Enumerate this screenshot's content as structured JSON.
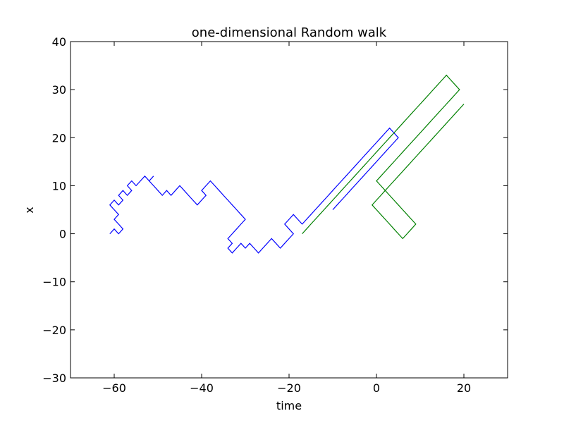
{
  "chart_data": {
    "type": "line",
    "title": "one-dimensional Random walk",
    "xlabel": "time",
    "ylabel": "x",
    "xlim": [
      -70,
      30
    ],
    "ylim": [
      -30,
      40
    ],
    "xticks": [
      -60,
      -40,
      -20,
      0,
      20
    ],
    "yticks": [
      -30,
      -20,
      -10,
      0,
      10,
      20,
      30,
      40
    ],
    "xtick_labels": [
      "−60",
      "−40",
      "−20",
      "0",
      "20"
    ],
    "ytick_labels": [
      "−30",
      "−20",
      "−10",
      "0",
      "10",
      "20",
      "30",
      "40"
    ],
    "grid": false,
    "legend": "none",
    "series": [
      {
        "color": "#0000ff",
        "points": [
          [
            -61,
            0
          ],
          [
            -60,
            1
          ],
          [
            -59,
            0
          ],
          [
            -58,
            1
          ],
          [
            -59,
            2
          ],
          [
            -60,
            3
          ],
          [
            -59,
            4
          ],
          [
            -60,
            5
          ],
          [
            -61,
            6
          ],
          [
            -60,
            7
          ],
          [
            -59,
            6
          ],
          [
            -58,
            7
          ],
          [
            -59,
            8
          ],
          [
            -58,
            9
          ],
          [
            -57,
            8
          ],
          [
            -56,
            9
          ],
          [
            -57,
            10
          ],
          [
            -56,
            11
          ],
          [
            -55,
            10
          ],
          [
            -54,
            11
          ],
          [
            -53,
            12
          ],
          [
            -52,
            11
          ],
          [
            -51,
            12
          ],
          [
            -52,
            11
          ],
          [
            -51,
            10
          ],
          [
            -50,
            9
          ],
          [
            -49,
            8
          ],
          [
            -48,
            9
          ],
          [
            -47,
            8
          ],
          [
            -46,
            9
          ],
          [
            -45,
            10
          ],
          [
            -44,
            9
          ],
          [
            -43,
            8
          ],
          [
            -42,
            7
          ],
          [
            -41,
            6
          ],
          [
            -40,
            7
          ],
          [
            -39,
            8
          ],
          [
            -40,
            9
          ],
          [
            -39,
            10
          ],
          [
            -38,
            11
          ],
          [
            -37,
            10
          ],
          [
            -36,
            9
          ],
          [
            -35,
            8
          ],
          [
            -34,
            7
          ],
          [
            -33,
            6
          ],
          [
            -32,
            5
          ],
          [
            -31,
            4
          ],
          [
            -30,
            3
          ],
          [
            -31,
            2
          ],
          [
            -32,
            1
          ],
          [
            -33,
            0
          ],
          [
            -34,
            -1
          ],
          [
            -33,
            -2
          ],
          [
            -34,
            -3
          ],
          [
            -33,
            -4
          ],
          [
            -32,
            -3
          ],
          [
            -31,
            -2
          ],
          [
            -30,
            -3
          ],
          [
            -29,
            -2
          ],
          [
            -28,
            -3
          ],
          [
            -27,
            -4
          ],
          [
            -26,
            -3
          ],
          [
            -25,
            -2
          ],
          [
            -24,
            -1
          ],
          [
            -23,
            -2
          ],
          [
            -22,
            -3
          ],
          [
            -21,
            -2
          ],
          [
            -20,
            -1
          ],
          [
            -19,
            0
          ],
          [
            -20,
            1
          ],
          [
            -21,
            2
          ],
          [
            -20,
            3
          ],
          [
            -19,
            4
          ],
          [
            -18,
            3
          ],
          [
            -17,
            2
          ],
          [
            -16,
            3
          ],
          [
            -15,
            4
          ],
          [
            -14,
            5
          ],
          [
            -13,
            6
          ],
          [
            -12,
            7
          ],
          [
            -11,
            8
          ],
          [
            -10,
            9
          ],
          [
            -9,
            10
          ],
          [
            -8,
            11
          ],
          [
            -7,
            12
          ],
          [
            -6,
            13
          ],
          [
            -5,
            14
          ],
          [
            -4,
            15
          ],
          [
            -3,
            16
          ],
          [
            -2,
            17
          ],
          [
            -1,
            18
          ],
          [
            0,
            19
          ],
          [
            1,
            20
          ],
          [
            2,
            21
          ],
          [
            3,
            22
          ],
          [
            4,
            21
          ],
          [
            5,
            20
          ],
          [
            4,
            19
          ],
          [
            3,
            18
          ],
          [
            2,
            17
          ],
          [
            1,
            16
          ],
          [
            0,
            15
          ],
          [
            -1,
            14
          ],
          [
            -2,
            13
          ],
          [
            -3,
            12
          ],
          [
            -4,
            11
          ],
          [
            -5,
            10
          ],
          [
            -6,
            9
          ],
          [
            -7,
            8
          ],
          [
            -8,
            7
          ],
          [
            -9,
            6
          ],
          [
            -10,
            5
          ]
        ]
      },
      {
        "color": "#008000",
        "points": [
          [
            -17,
            0
          ],
          [
            -16,
            1
          ],
          [
            -15,
            2
          ],
          [
            -14,
            3
          ],
          [
            -13,
            4
          ],
          [
            -12,
            5
          ],
          [
            -11,
            6
          ],
          [
            -10,
            7
          ],
          [
            -9,
            8
          ],
          [
            -8,
            9
          ],
          [
            -7,
            10
          ],
          [
            -6,
            11
          ],
          [
            -5,
            12
          ],
          [
            -4,
            13
          ],
          [
            -3,
            14
          ],
          [
            -2,
            15
          ],
          [
            -1,
            16
          ],
          [
            0,
            17
          ],
          [
            1,
            18
          ],
          [
            2,
            19
          ],
          [
            3,
            20
          ],
          [
            4,
            21
          ],
          [
            5,
            22
          ],
          [
            6,
            23
          ],
          [
            7,
            24
          ],
          [
            8,
            25
          ],
          [
            9,
            26
          ],
          [
            10,
            27
          ],
          [
            11,
            28
          ],
          [
            12,
            29
          ],
          [
            13,
            30
          ],
          [
            14,
            31
          ],
          [
            15,
            32
          ],
          [
            16,
            33
          ],
          [
            17,
            32
          ],
          [
            18,
            31
          ],
          [
            19,
            30
          ],
          [
            18,
            29
          ],
          [
            17,
            28
          ],
          [
            16,
            27
          ],
          [
            15,
            26
          ],
          [
            14,
            25
          ],
          [
            13,
            24
          ],
          [
            12,
            23
          ],
          [
            11,
            22
          ],
          [
            10,
            21
          ],
          [
            9,
            20
          ],
          [
            8,
            19
          ],
          [
            7,
            18
          ],
          [
            6,
            17
          ],
          [
            5,
            16
          ],
          [
            4,
            15
          ],
          [
            3,
            14
          ],
          [
            2,
            13
          ],
          [
            1,
            12
          ],
          [
            0,
            11
          ],
          [
            1,
            10
          ],
          [
            2,
            9
          ],
          [
            3,
            8
          ],
          [
            4,
            7
          ],
          [
            5,
            6
          ],
          [
            6,
            5
          ],
          [
            7,
            4
          ],
          [
            8,
            3
          ],
          [
            9,
            2
          ],
          [
            8,
            1
          ],
          [
            7,
            0
          ],
          [
            6,
            -1
          ],
          [
            5,
            0
          ],
          [
            4,
            1
          ],
          [
            3,
            2
          ],
          [
            2,
            3
          ],
          [
            1,
            4
          ],
          [
            0,
            5
          ],
          [
            -1,
            6
          ],
          [
            0,
            7
          ],
          [
            1,
            8
          ],
          [
            2,
            9
          ],
          [
            3,
            10
          ],
          [
            4,
            11
          ],
          [
            5,
            12
          ],
          [
            6,
            13
          ],
          [
            7,
            14
          ],
          [
            8,
            15
          ],
          [
            9,
            16
          ],
          [
            10,
            17
          ],
          [
            11,
            18
          ],
          [
            12,
            19
          ],
          [
            13,
            20
          ],
          [
            14,
            21
          ],
          [
            15,
            22
          ],
          [
            16,
            23
          ],
          [
            17,
            24
          ],
          [
            18,
            25
          ],
          [
            19,
            26
          ],
          [
            20,
            27
          ]
        ]
      }
    ]
  }
}
